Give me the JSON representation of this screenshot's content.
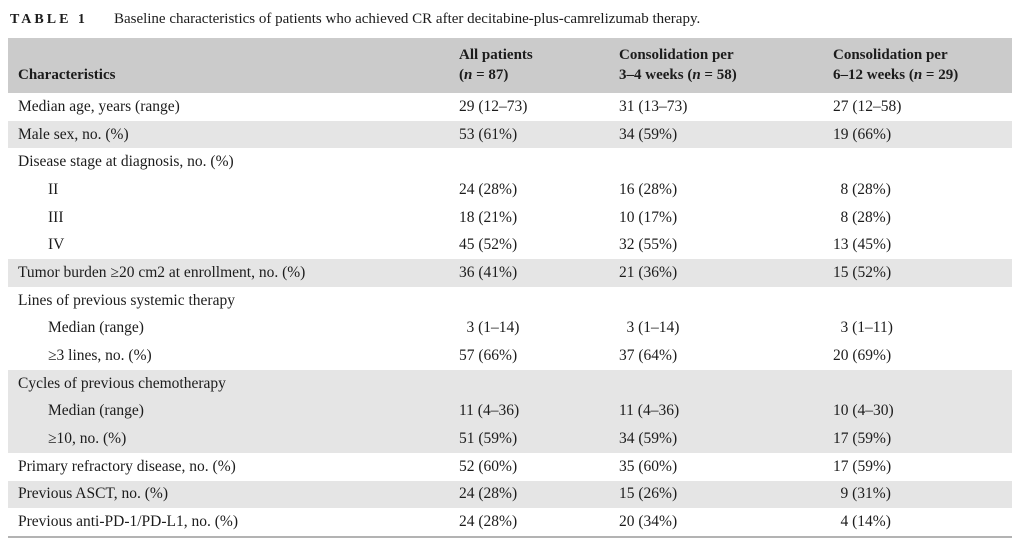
{
  "caption": {
    "tag": "TABLE 1",
    "text": "Baseline characteristics of patients who achieved CR after decitabine-plus-camrelizumab therapy."
  },
  "colors": {
    "header_bg": "#cbcbcb",
    "row_shade": "#e5e5e5",
    "bottom_rule": "#b3b3b3"
  },
  "table": {
    "header": {
      "col1": "Characteristics",
      "col2": {
        "line1": "All patients",
        "line2_pre": "(",
        "n": "n",
        "line2_post": " = 87)"
      },
      "col3": {
        "line1": "Consolidation per",
        "line2_pre": "3–4 weeks (",
        "n": "n",
        "line2_post": " = 58)"
      },
      "col4": {
        "line1": "Consolidation per",
        "line2_pre": "6–12 weeks (",
        "n": "n",
        "line2_post": " = 29)"
      }
    },
    "rows": [
      {
        "label": "Median age, years (range)",
        "values": [
          "29 (12–73)",
          "31 (13–73)",
          "27 (12–58)"
        ]
      },
      {
        "label": "Male sex, no. (%)",
        "values": [
          "53 (61%)",
          "34 (59%)",
          "19 (66%)"
        ]
      },
      {
        "label": "Disease stage at diagnosis, no. (%)",
        "values": [
          "",
          "",
          ""
        ]
      },
      {
        "label": "II",
        "values": [
          "24 (28%)",
          "16 (28%)",
          "8 (28%)"
        ]
      },
      {
        "label": "III",
        "values": [
          "18 (21%)",
          "10 (17%)",
          "8 (28%)"
        ]
      },
      {
        "label": "IV",
        "values": [
          "45 (52%)",
          "32 (55%)",
          "13 (45%)"
        ]
      },
      {
        "label": "Tumor burden ≥20 cm2 at enrollment, no. (%)",
        "values": [
          "36 (41%)",
          "21 (36%)",
          "15 (52%)"
        ]
      },
      {
        "label": "Lines of previous systemic therapy",
        "values": [
          "",
          "",
          ""
        ]
      },
      {
        "label": "Median (range)",
        "values": [
          "3 (1–14)",
          "3 (1–14)",
          "3 (1–11)"
        ]
      },
      {
        "label": "≥3 lines, no. (%)",
        "values": [
          "57 (66%)",
          "37 (64%)",
          "20 (69%)"
        ]
      },
      {
        "label": "Cycles of previous chemotherapy",
        "values": [
          "",
          "",
          ""
        ]
      },
      {
        "label": "Median (range)",
        "values": [
          "11 (4–36)",
          "11 (4–36)",
          "10 (4–30)"
        ]
      },
      {
        "label": "≥10, no. (%)",
        "values": [
          "51 (59%)",
          "34 (59%)",
          "17 (59%)"
        ]
      },
      {
        "label": "Primary refractory disease, no. (%)",
        "values": [
          "52 (60%)",
          "35 (60%)",
          "17 (59%)"
        ]
      },
      {
        "label": "Previous ASCT, no. (%)",
        "values": [
          "24 (28%)",
          "15 (26%)",
          "9 (31%)"
        ]
      },
      {
        "label": "Previous anti-PD-1/PD-L1, no. (%)",
        "values": [
          "24 (28%)",
          "20 (34%)",
          "4 (14%)"
        ]
      }
    ]
  }
}
